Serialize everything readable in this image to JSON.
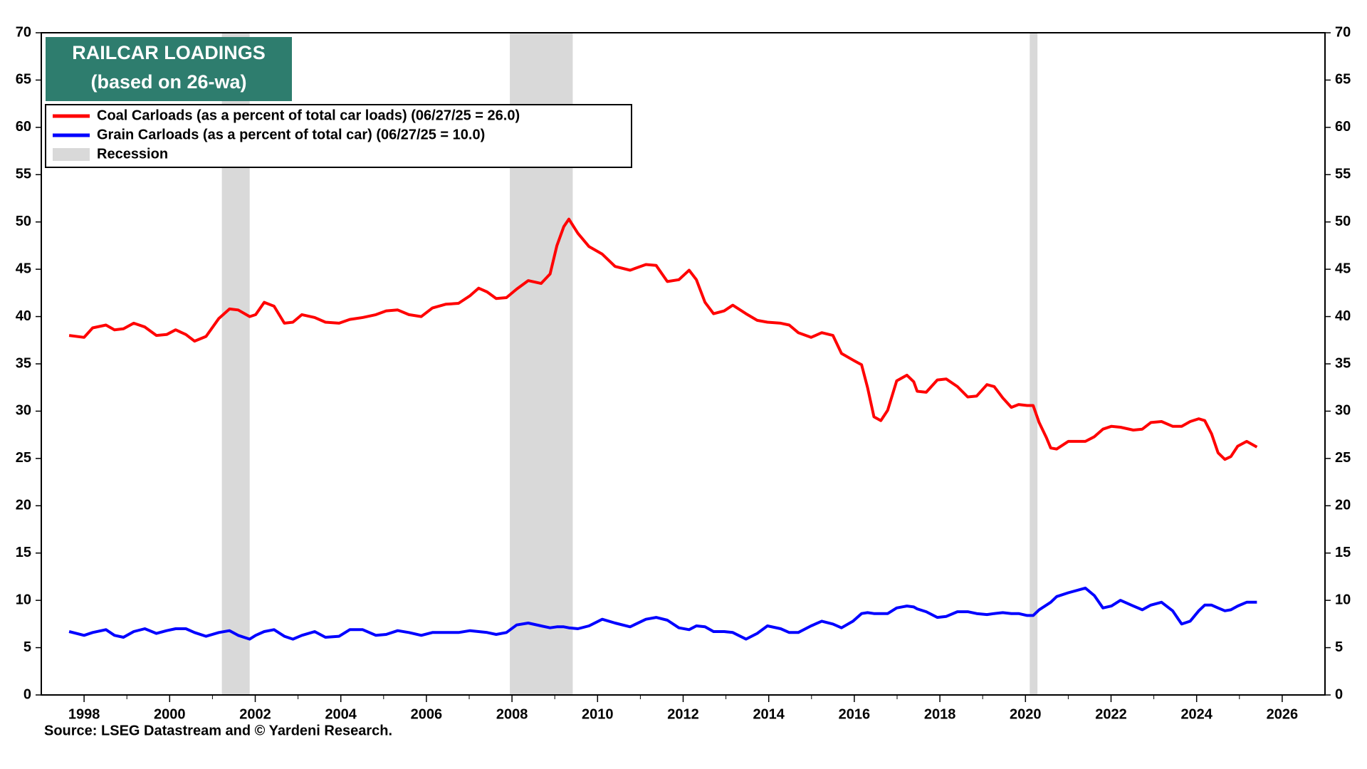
{
  "chart_data": {
    "type": "line",
    "title": "RAILCAR LOADINGS",
    "subtitle": "(based on 26-wa)",
    "source": "Source: LSEG Datastream and © Yardeni Research.",
    "recession_label": "Recession",
    "recession_color": "#d9d9d9",
    "recessions": [
      [
        2001.22,
        2001.87
      ],
      [
        2007.95,
        2009.42
      ],
      [
        2020.1,
        2020.28
      ]
    ],
    "x": [
      1997.65,
      1998.0,
      1998.2,
      1998.51,
      1998.71,
      1998.92,
      1999.16,
      1999.42,
      1999.69,
      1999.93,
      2000.14,
      2000.38,
      2000.58,
      2000.85,
      2001.15,
      2001.4,
      2001.6,
      2001.87,
      2002.01,
      2002.21,
      2002.44,
      2002.68,
      2002.88,
      2003.09,
      2003.39,
      2003.64,
      2003.96,
      2004.21,
      2004.51,
      2004.82,
      2005.06,
      2005.33,
      2005.59,
      2005.88,
      2006.14,
      2006.45,
      2006.75,
      2007.02,
      2007.22,
      2007.42,
      2007.63,
      2007.87,
      2008.11,
      2008.38,
      2008.68,
      2008.89,
      2009.05,
      2009.21,
      2009.33,
      2009.54,
      2009.8,
      2010.11,
      2010.41,
      2010.76,
      2011.13,
      2011.37,
      2011.63,
      2011.9,
      2012.14,
      2012.31,
      2012.51,
      2012.71,
      2012.96,
      2013.16,
      2013.47,
      2013.73,
      2013.97,
      2014.28,
      2014.48,
      2014.69,
      2014.99,
      2015.24,
      2015.5,
      2015.7,
      2015.97,
      2016.17,
      2016.31,
      2016.46,
      2016.62,
      2016.78,
      2016.99,
      2017.23,
      2017.39,
      2017.47,
      2017.68,
      2017.94,
      2018.15,
      2018.41,
      2018.65,
      2018.86,
      2019.1,
      2019.27,
      2019.47,
      2019.67,
      2019.84,
      2020.04,
      2020.18,
      2020.32,
      2020.49,
      2020.59,
      2020.73,
      2021.0,
      2021.4,
      2021.61,
      2021.81,
      2022.01,
      2022.22,
      2022.52,
      2022.73,
      2022.93,
      2023.18,
      2023.44,
      2023.65,
      2023.85,
      2024.05,
      2024.19,
      2024.35,
      2024.5,
      2024.66,
      2024.8,
      2024.96,
      2025.17,
      2025.41
    ],
    "series": [
      {
        "name": "Coal Carloads (as a percent of total car loads) (06/27/25 = 26.0)",
        "color": "#ff0000",
        "values": [
          38.0,
          37.8,
          38.8,
          39.1,
          38.6,
          38.7,
          39.3,
          38.9,
          38.0,
          38.1,
          38.6,
          38.1,
          37.4,
          37.9,
          39.8,
          40.8,
          40.7,
          40.0,
          40.2,
          41.5,
          41.1,
          39.3,
          39.4,
          40.2,
          39.9,
          39.4,
          39.3,
          39.7,
          39.9,
          40.2,
          40.6,
          40.7,
          40.2,
          40.0,
          40.9,
          41.3,
          41.4,
          42.2,
          43.0,
          42.6,
          41.9,
          42.0,
          42.9,
          43.8,
          43.5,
          44.5,
          47.5,
          49.5,
          50.3,
          48.8,
          47.4,
          46.6,
          45.3,
          44.9,
          45.5,
          45.4,
          43.7,
          43.9,
          44.9,
          43.9,
          41.5,
          40.3,
          40.6,
          41.2,
          40.3,
          39.6,
          39.4,
          39.3,
          39.1,
          38.3,
          37.8,
          38.3,
          38.0,
          36.1,
          35.4,
          34.9,
          32.5,
          29.4,
          29.0,
          30.1,
          33.2,
          33.8,
          33.1,
          32.1,
          32.0,
          33.3,
          33.4,
          32.6,
          31.5,
          31.6,
          32.8,
          32.6,
          31.4,
          30.4,
          30.7,
          30.6,
          30.6,
          28.8,
          27.2,
          26.1,
          26.0,
          26.8,
          26.8,
          27.3,
          28.1,
          28.4,
          28.3,
          28.0,
          28.1,
          28.8,
          28.9,
          28.4,
          28.4,
          28.9,
          29.2,
          29.0,
          27.6,
          25.6,
          24.9,
          25.2,
          26.3,
          26.8,
          26.2
        ]
      },
      {
        "name": "Grain Carloads (as a percent of total car) (06/27/25 = 10.0)",
        "color": "#0000ff",
        "values": [
          6.7,
          6.3,
          6.6,
          6.9,
          6.3,
          6.1,
          6.7,
          7.0,
          6.5,
          6.8,
          7.0,
          7.0,
          6.6,
          6.2,
          6.6,
          6.8,
          6.3,
          5.9,
          6.3,
          6.7,
          6.9,
          6.2,
          5.9,
          6.3,
          6.7,
          6.1,
          6.2,
          6.9,
          6.9,
          6.3,
          6.4,
          6.8,
          6.6,
          6.3,
          6.6,
          6.6,
          6.6,
          6.8,
          6.7,
          6.6,
          6.4,
          6.6,
          7.4,
          7.6,
          7.3,
          7.1,
          7.2,
          7.2,
          7.1,
          7.0,
          7.3,
          8.0,
          7.6,
          7.2,
          8.0,
          8.2,
          7.9,
          7.1,
          6.9,
          7.3,
          7.2,
          6.7,
          6.7,
          6.6,
          5.9,
          6.5,
          7.3,
          7.0,
          6.6,
          6.6,
          7.3,
          7.8,
          7.5,
          7.1,
          7.8,
          8.6,
          8.7,
          8.6,
          8.6,
          8.6,
          9.2,
          9.4,
          9.3,
          9.1,
          8.8,
          8.2,
          8.3,
          8.8,
          8.8,
          8.6,
          8.5,
          8.6,
          8.7,
          8.6,
          8.6,
          8.4,
          8.4,
          9.0,
          9.5,
          9.8,
          10.4,
          10.8,
          11.3,
          10.5,
          9.2,
          9.4,
          10.0,
          9.4,
          9.0,
          9.5,
          9.8,
          8.9,
          7.5,
          7.8,
          8.9,
          9.5,
          9.5,
          9.2,
          8.9,
          9.0,
          9.4,
          9.8,
          9.8
        ]
      }
    ],
    "xlim": [
      1997,
      2027
    ],
    "xticks": [
      1998,
      2000,
      2002,
      2004,
      2006,
      2008,
      2010,
      2012,
      2014,
      2016,
      2018,
      2020,
      2022,
      2024,
      2026
    ],
    "ylim": [
      0,
      70
    ],
    "yticks": [
      0,
      5,
      10,
      15,
      20,
      25,
      30,
      35,
      40,
      45,
      50,
      55,
      60,
      65,
      70
    ],
    "title_box_color": "#2e7d6e"
  }
}
